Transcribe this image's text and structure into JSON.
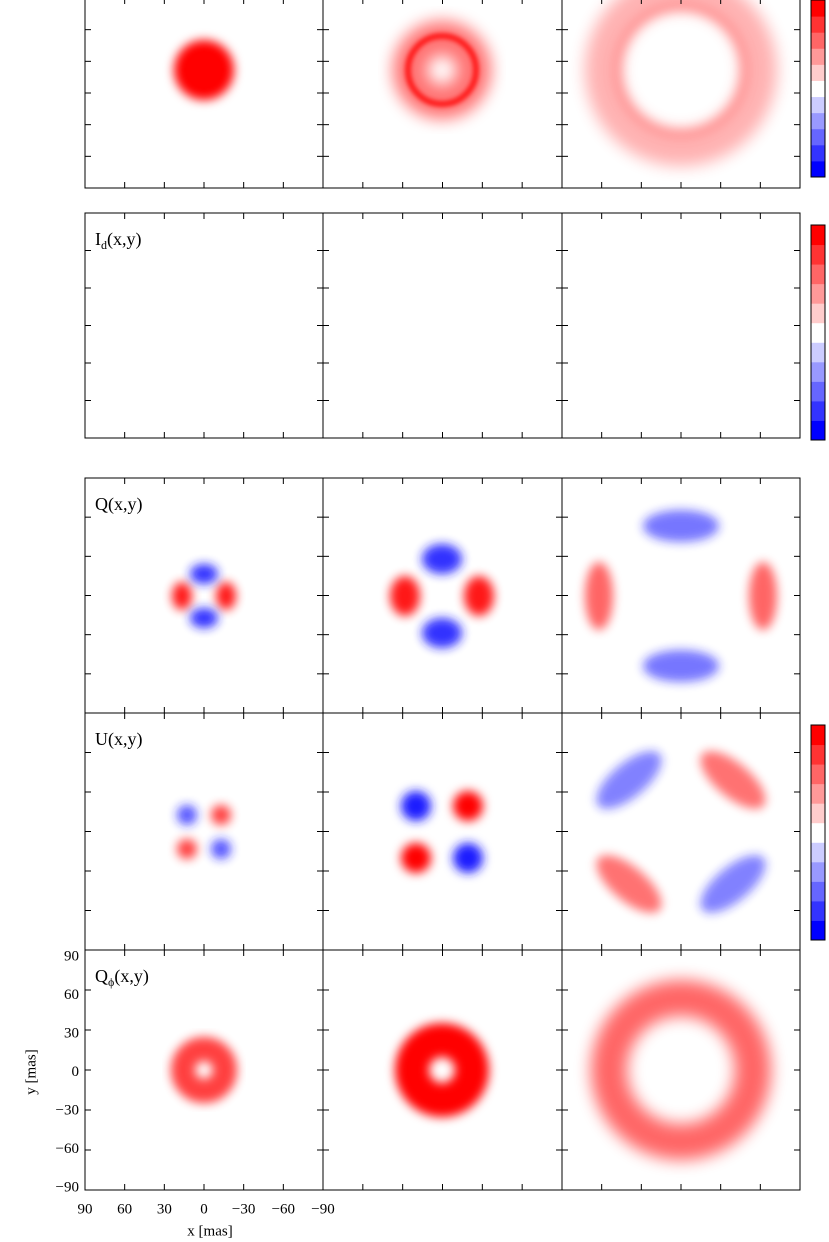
{
  "chart_data": {
    "type": "image-grid",
    "panel_labels": [
      {
        "base": "I",
        "sub": "d",
        "rest": "(x,y)"
      },
      {
        "base": "Q",
        "rest": "(x,y)"
      },
      {
        "base": "U",
        "rest": "(x,y)"
      },
      {
        "base": "Q",
        "sub": "ϕ",
        "rest": "(x,y)"
      }
    ],
    "xlabel": "x [mas]",
    "ylabel": "y [mas]",
    "xlim": [
      90,
      -90
    ],
    "ylim": [
      -90,
      90
    ],
    "xticks": [
      90,
      60,
      30,
      0,
      {
        "value": -30,
        "label": "−30"
      },
      {
        "value": -60,
        "label": "−60"
      },
      {
        "value": -90,
        "label": "−90"
      }
    ],
    "yticks": [
      90,
      60,
      30,
      0,
      {
        "value": -30,
        "label": "−30"
      },
      {
        "value": -60,
        "label": "−60"
      },
      {
        "value": -90,
        "label": "−90"
      }
    ]
  }
}
